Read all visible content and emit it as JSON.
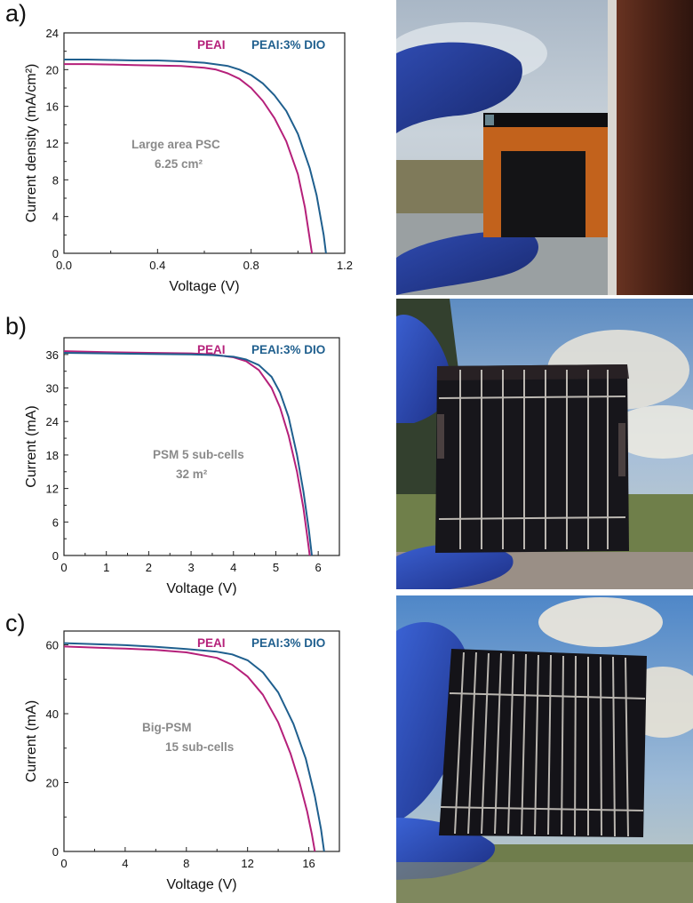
{
  "colors": {
    "peai": "#b5207a",
    "dio": "#1f5f8e"
  },
  "panels": [
    {
      "letter": "a)",
      "chart_data": {
        "type": "line",
        "xlabel": "Voltage (V)",
        "ylabel": "Current density (mA/cm²)",
        "xlim": [
          0,
          1.2
        ],
        "ylim": [
          0,
          24
        ],
        "xticks": [
          0,
          0.4,
          0.8,
          1.2
        ],
        "xtick_labels": [
          "0.0",
          "0.4",
          "0.8",
          "1.2"
        ],
        "yticks": [
          0,
          4,
          8,
          12,
          16,
          20,
          24
        ],
        "ytick_labels": [
          "0",
          "4",
          "8",
          "12",
          "16",
          "20",
          "24"
        ],
        "annotation": [
          "Large area PSC",
          "6.25 cm²"
        ],
        "series": [
          {
            "name": "PEAI",
            "color": "#b5207a",
            "x": [
              0,
              0.1,
              0.2,
              0.3,
              0.4,
              0.5,
              0.6,
              0.65,
              0.7,
              0.75,
              0.8,
              0.85,
              0.9,
              0.95,
              1.0,
              1.03,
              1.06
            ],
            "y": [
              20.6,
              20.6,
              20.55,
              20.5,
              20.45,
              20.4,
              20.2,
              20.0,
              19.6,
              19.0,
              18.0,
              16.6,
              14.7,
              12.2,
              8.6,
              5.0,
              0
            ]
          },
          {
            "name": "PEAI:3% DIO",
            "color": "#1f5f8e",
            "x": [
              0,
              0.1,
              0.2,
              0.3,
              0.4,
              0.5,
              0.6,
              0.7,
              0.75,
              0.8,
              0.85,
              0.9,
              0.95,
              1.0,
              1.05,
              1.08,
              1.11,
              1.12
            ],
            "y": [
              21.1,
              21.1,
              21.05,
              21.0,
              21.0,
              20.9,
              20.75,
              20.4,
              20.0,
              19.4,
              18.5,
              17.2,
              15.5,
              13.0,
              9.3,
              6.3,
              2.0,
              0
            ]
          }
        ]
      }
    },
    {
      "letter": "b)",
      "chart_data": {
        "type": "line",
        "xlabel": "Voltage (V)",
        "ylabel": "Current (mA)",
        "xlim": [
          0,
          6.5
        ],
        "ylim": [
          0,
          39
        ],
        "xticks": [
          0,
          1,
          2,
          3,
          4,
          5,
          6
        ],
        "xtick_labels": [
          "0",
          "1",
          "2",
          "3",
          "4",
          "5",
          "6"
        ],
        "yticks": [
          0,
          6,
          12,
          18,
          24,
          30,
          36
        ],
        "ytick_labels": [
          "0",
          "6",
          "12",
          "18",
          "24",
          "30",
          "36"
        ],
        "annotation": [
          "PSM 5 sub-cells",
          "32 m²"
        ],
        "series": [
          {
            "name": "PEAI",
            "color": "#b5207a",
            "x": [
              0,
              1,
              2,
              3,
              3.5,
              4,
              4.3,
              4.6,
              4.9,
              5.1,
              5.3,
              5.5,
              5.65,
              5.75,
              5.8
            ],
            "y": [
              36.6,
              36.4,
              36.3,
              36.2,
              36.0,
              35.5,
              34.8,
              33.2,
              30.0,
              26.5,
              21.5,
              15.0,
              8.5,
              3.0,
              0
            ]
          },
          {
            "name": "PEAI:3% DIO",
            "color": "#1f5f8e",
            "x": [
              0,
              1,
              2,
              3,
              3.5,
              4,
              4.3,
              4.6,
              4.9,
              5.1,
              5.3,
              5.5,
              5.65,
              5.78,
              5.85
            ],
            "y": [
              36.3,
              36.2,
              36.1,
              36.0,
              35.9,
              35.6,
              35.1,
              34.1,
              32.0,
              29.2,
              24.8,
              18.0,
              11.5,
              4.5,
              0
            ]
          }
        ]
      }
    },
    {
      "letter": "c)",
      "chart_data": {
        "type": "line",
        "xlabel": "Voltage (V)",
        "ylabel": "Current (mA)",
        "xlim": [
          0,
          18
        ],
        "ylim": [
          0,
          64
        ],
        "xticks": [
          0,
          4,
          8,
          12,
          16
        ],
        "xtick_labels": [
          "0",
          "4",
          "8",
          "12",
          "16"
        ],
        "yticks": [
          0,
          20,
          40,
          60
        ],
        "ytick_labels": [
          "0",
          "20",
          "40",
          "60"
        ],
        "annotation": [
          "Big-PSM",
          "15 sub-cells"
        ],
        "series": [
          {
            "name": "PEAI",
            "color": "#b5207a",
            "x": [
              0,
              2,
              4,
              6,
              8,
              10,
              11,
              12,
              13,
              14,
              14.8,
              15.4,
              15.9,
              16.2,
              16.4
            ],
            "y": [
              59.5,
              59.2,
              58.9,
              58.5,
              57.8,
              56.2,
              54.2,
              50.8,
              45.5,
              37.5,
              28.5,
              20.0,
              11.5,
              5.0,
              0
            ]
          },
          {
            "name": "PEAI:3% DIO",
            "color": "#1f5f8e",
            "x": [
              0,
              2,
              4,
              6,
              8,
              10,
              11,
              12,
              13,
              14,
              15,
              15.8,
              16.4,
              16.8,
              17.0
            ],
            "y": [
              60.5,
              60.2,
              59.9,
              59.4,
              58.8,
              58.0,
              57.2,
              55.5,
              52.0,
              46.2,
              37.0,
              27.0,
              16.0,
              6.5,
              0
            ]
          }
        ]
      }
    }
  ]
}
